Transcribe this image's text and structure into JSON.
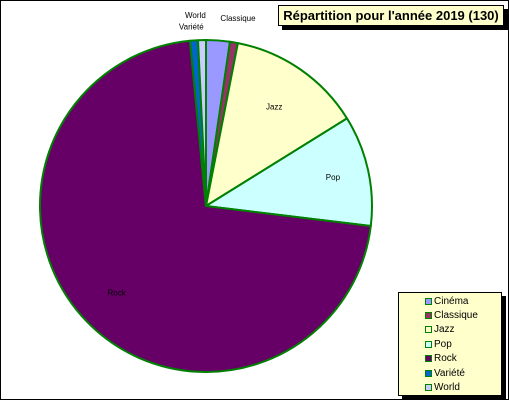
{
  "chart_data": {
    "type": "pie",
    "title": "Répartition pour l'année 2019 (130)",
    "categories": [
      "Cinéma",
      "Classique",
      "Jazz",
      "Pop",
      "Rock",
      "Variété",
      "World"
    ],
    "values": [
      3,
      1,
      17,
      14,
      93,
      1,
      1
    ],
    "colors": {
      "Cinéma": "#9999ff",
      "Classique": "#993366",
      "Jazz": "#ffffcc",
      "Pop": "#ccffff",
      "Rock": "#660066",
      "Variété": "#0066cc",
      "World": "#ccccff"
    },
    "slice_border_color": "#008000",
    "legend_position": "bottom-right",
    "legend_swatch_color": "#008000",
    "title_background": "#ffffcc"
  }
}
